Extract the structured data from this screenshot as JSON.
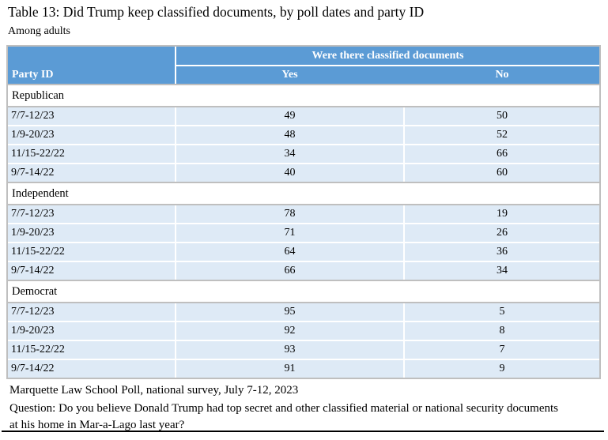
{
  "title": "Table 13: Did Trump keep classified documents, by poll dates and party ID",
  "subtitle": "Among adults",
  "table": {
    "header": {
      "party_id": "Party ID",
      "group": "Were there classified documents",
      "yes": "Yes",
      "no": "No"
    },
    "sections": [
      {
        "name": "Republican",
        "rows": [
          {
            "date": "7/7-12/23",
            "yes": "49",
            "no": "50"
          },
          {
            "date": "1/9-20/23",
            "yes": "48",
            "no": "52"
          },
          {
            "date": "11/15-22/22",
            "yes": "34",
            "no": "66"
          },
          {
            "date": "9/7-14/22",
            "yes": "40",
            "no": "60"
          }
        ]
      },
      {
        "name": "Independent",
        "rows": [
          {
            "date": "7/7-12/23",
            "yes": "78",
            "no": "19"
          },
          {
            "date": "1/9-20/23",
            "yes": "71",
            "no": "26"
          },
          {
            "date": "11/15-22/22",
            "yes": "64",
            "no": "36"
          },
          {
            "date": "9/7-14/22",
            "yes": "66",
            "no": "34"
          }
        ]
      },
      {
        "name": "Democrat",
        "rows": [
          {
            "date": "7/7-12/23",
            "yes": "95",
            "no": "5"
          },
          {
            "date": "1/9-20/23",
            "yes": "92",
            "no": "8"
          },
          {
            "date": "11/15-22/22",
            "yes": "93",
            "no": "7"
          },
          {
            "date": "9/7-14/22",
            "yes": "91",
            "no": "9"
          }
        ]
      }
    ]
  },
  "footer": {
    "source": "Marquette Law School Poll, national survey, July 7-12, 2023",
    "question": "Question: Do you believe Donald Trump had top secret and other classified material or national security documents at his home in Mar-a-Lago last year?"
  },
  "colors": {
    "header_blue": "#5B9BD5",
    "row_light_blue": "#DEEAF6",
    "outer_border_gray": "#BFBFBF",
    "header_text": "#FFFFFF",
    "body_text": "#000000",
    "bottom_rule": "#000000"
  }
}
